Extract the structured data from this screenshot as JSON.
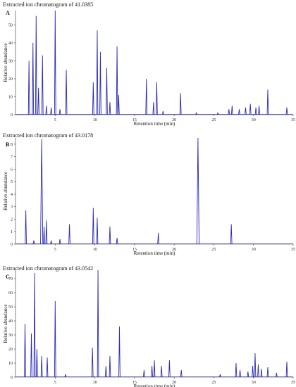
{
  "chart_data": [
    {
      "type": "line",
      "title": "Extracted ion chromatogram of 41.0385",
      "panel_label": "A",
      "xlabel": "Retention time (min)",
      "ylabel": "Relative abundance",
      "xlim": [
        0,
        35
      ],
      "ylim": [
        0,
        58
      ],
      "xticks": [
        5,
        10,
        15,
        20,
        25,
        30,
        35
      ],
      "yticks": [
        0,
        10,
        20,
        30,
        40,
        50
      ],
      "peaks": [
        {
          "x": 1.7,
          "y": 30
        },
        {
          "x": 2.2,
          "y": 40
        },
        {
          "x": 2.6,
          "y": 55
        },
        {
          "x": 2.9,
          "y": 15
        },
        {
          "x": 3.4,
          "y": 33
        },
        {
          "x": 3.9,
          "y": 5
        },
        {
          "x": 4.5,
          "y": 4
        },
        {
          "x": 5.0,
          "y": 58
        },
        {
          "x": 5.6,
          "y": 3
        },
        {
          "x": 6.4,
          "y": 25
        },
        {
          "x": 9.8,
          "y": 18
        },
        {
          "x": 10.3,
          "y": 47
        },
        {
          "x": 10.7,
          "y": 35
        },
        {
          "x": 11.5,
          "y": 26
        },
        {
          "x": 11.9,
          "y": 7
        },
        {
          "x": 12.8,
          "y": 38
        },
        {
          "x": 13.0,
          "y": 11
        },
        {
          "x": 16.5,
          "y": 20
        },
        {
          "x": 17.4,
          "y": 7
        },
        {
          "x": 17.8,
          "y": 18
        },
        {
          "x": 18.6,
          "y": 2
        },
        {
          "x": 20.8,
          "y": 12
        },
        {
          "x": 22.8,
          "y": 1
        },
        {
          "x": 25.5,
          "y": 1
        },
        {
          "x": 26.9,
          "y": 3
        },
        {
          "x": 27.3,
          "y": 5
        },
        {
          "x": 28.2,
          "y": 3
        },
        {
          "x": 29.0,
          "y": 4
        },
        {
          "x": 29.6,
          "y": 6
        },
        {
          "x": 30.3,
          "y": 4
        },
        {
          "x": 30.7,
          "y": 5
        },
        {
          "x": 31.8,
          "y": 14
        },
        {
          "x": 34.2,
          "y": 4
        }
      ]
    },
    {
      "type": "line",
      "title": "Extracted ion chromatogram of 43.0178",
      "panel_label": "B",
      "xlabel": "Retention time (min)",
      "ylabel": "Relative abundance",
      "xlim": [
        0,
        35
      ],
      "ylim": [
        0,
        8.5
      ],
      "xticks": [
        5,
        10,
        15,
        20,
        25,
        30,
        35
      ],
      "yticks": [
        0,
        1,
        2,
        3,
        4,
        5,
        6,
        7,
        8
      ],
      "peaks": [
        {
          "x": 1.3,
          "y": 2.7
        },
        {
          "x": 2.3,
          "y": 0.3
        },
        {
          "x": 3.3,
          "y": 8.4
        },
        {
          "x": 3.6,
          "y": 1.4
        },
        {
          "x": 3.9,
          "y": 1.9
        },
        {
          "x": 4.5,
          "y": 0.3
        },
        {
          "x": 5.6,
          "y": 0.4
        },
        {
          "x": 6.8,
          "y": 1.6
        },
        {
          "x": 9.8,
          "y": 2.9
        },
        {
          "x": 10.3,
          "y": 2.1
        },
        {
          "x": 11.9,
          "y": 1.4
        },
        {
          "x": 12.8,
          "y": 0.5
        },
        {
          "x": 18.0,
          "y": 0.9
        },
        {
          "x": 23.0,
          "y": 8.5
        },
        {
          "x": 27.2,
          "y": 1.6
        }
      ]
    },
    {
      "type": "line",
      "title": "Extracted ion chromatogram of 43.0542",
      "panel_label": "C",
      "xlabel": "Retention time (min)",
      "ylabel": "Relative abundance",
      "xlim": [
        0,
        35
      ],
      "ylim": [
        0,
        76
      ],
      "xticks": [
        5,
        10,
        15,
        20,
        25,
        30,
        35
      ],
      "yticks": [
        0,
        10,
        20,
        30,
        40,
        50,
        60,
        70
      ],
      "peaks": [
        {
          "x": 1.2,
          "y": 38
        },
        {
          "x": 2.0,
          "y": 31
        },
        {
          "x": 2.4,
          "y": 74
        },
        {
          "x": 2.7,
          "y": 20
        },
        {
          "x": 3.3,
          "y": 15
        },
        {
          "x": 4.0,
          "y": 14
        },
        {
          "x": 5.0,
          "y": 54
        },
        {
          "x": 6.3,
          "y": 2
        },
        {
          "x": 9.7,
          "y": 21
        },
        {
          "x": 10.4,
          "y": 76
        },
        {
          "x": 11.4,
          "y": 8
        },
        {
          "x": 11.9,
          "y": 15
        },
        {
          "x": 13.1,
          "y": 36
        },
        {
          "x": 16.2,
          "y": 5
        },
        {
          "x": 17.2,
          "y": 8
        },
        {
          "x": 17.5,
          "y": 12
        },
        {
          "x": 18.4,
          "y": 8
        },
        {
          "x": 19.4,
          "y": 12
        },
        {
          "x": 20.9,
          "y": 5
        },
        {
          "x": 25.8,
          "y": 2
        },
        {
          "x": 27.8,
          "y": 10
        },
        {
          "x": 28.3,
          "y": 5
        },
        {
          "x": 29.3,
          "y": 4
        },
        {
          "x": 29.9,
          "y": 8
        },
        {
          "x": 30.2,
          "y": 17
        },
        {
          "x": 30.6,
          "y": 9
        },
        {
          "x": 31.0,
          "y": 6
        },
        {
          "x": 31.8,
          "y": 7
        },
        {
          "x": 32.9,
          "y": 3
        },
        {
          "x": 34.2,
          "y": 11
        }
      ]
    }
  ]
}
